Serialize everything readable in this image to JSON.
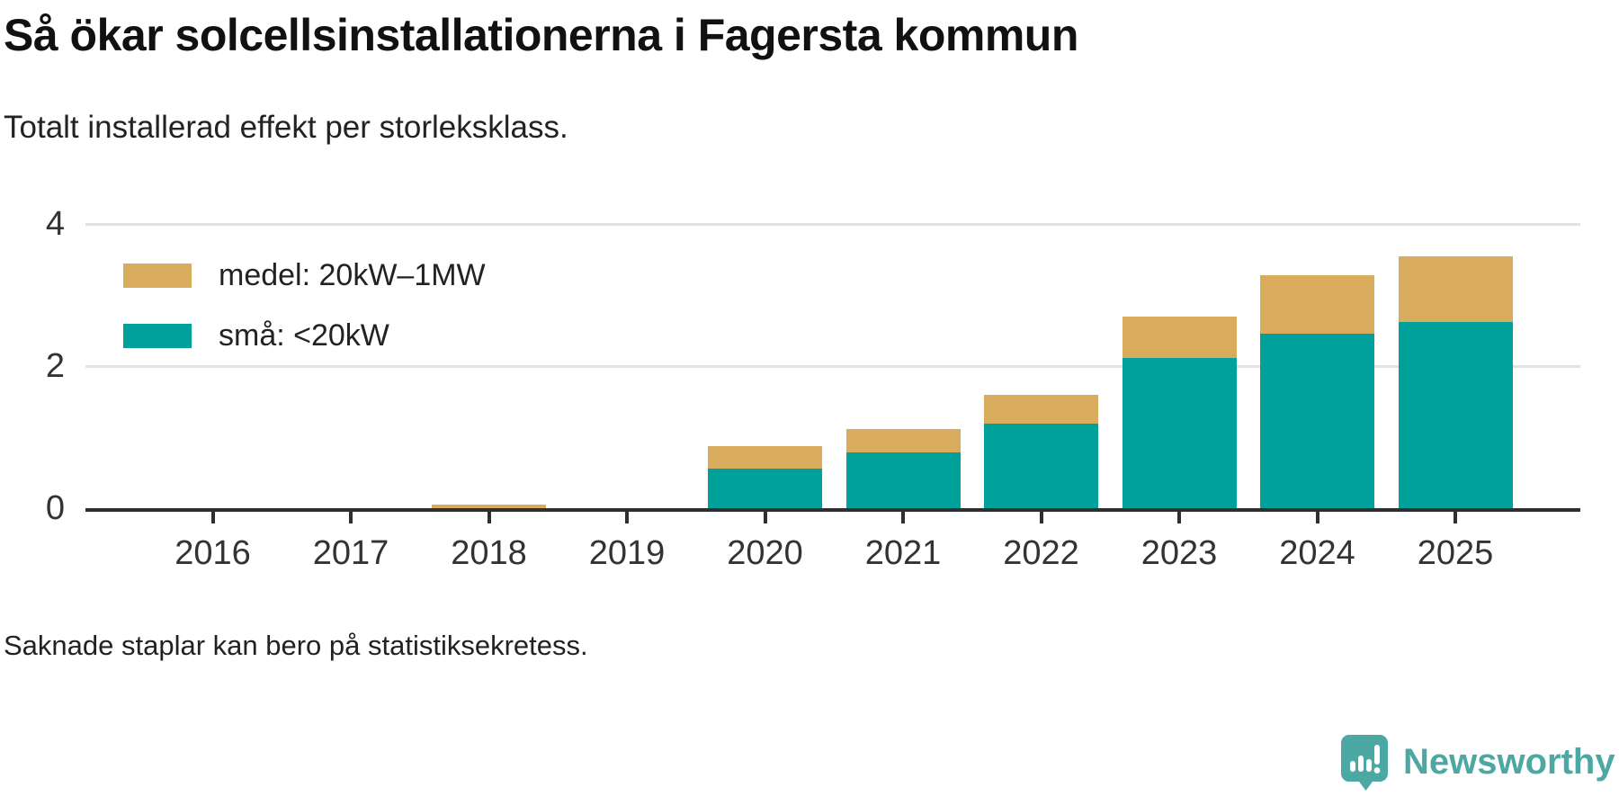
{
  "header": {
    "title": "Så ökar solcellsinstallationerna i Fagersta kommun",
    "subtitle": "Totalt installerad effekt per storleksklass."
  },
  "footer": {
    "note": "Saknade staplar kan bero på statistiksekretess."
  },
  "brand": {
    "name": "Newsworthy",
    "color": "#4ba8a2",
    "icon": "newsworthy-speech-bubble-chart-logo"
  },
  "colors": {
    "medel": "#d9ab5c",
    "sma": "#00a19b",
    "axis": "#2f2f2f",
    "gridline": "#e2e2e2"
  },
  "chart_data": {
    "type": "bar",
    "stacked": true,
    "title": "Så ökar solcellsinstallationerna i Fagersta kommun",
    "subtitle": "Totalt installerad effekt per storleksklass.",
    "categories": [
      "2016",
      "2017",
      "2018",
      "2019",
      "2020",
      "2021",
      "2022",
      "2023",
      "2024",
      "2025"
    ],
    "series": [
      {
        "name": "medel: 20kW–1MW",
        "color": "#d9ab5c",
        "values": [
          0,
          0,
          0.05,
          0,
          0.31,
          0.32,
          0.41,
          0.58,
          0.82,
          0.92
        ]
      },
      {
        "name": "små: <20kW",
        "color": "#00a19b",
        "values": [
          0,
          0,
          0,
          0,
          0.56,
          0.79,
          1.19,
          2.11,
          2.46,
          2.62
        ]
      }
    ],
    "xlabel": "",
    "ylabel": "",
    "ylim": [
      0,
      4
    ],
    "yticks": [
      0,
      2,
      4
    ],
    "grid": true,
    "legend_position": "top-left",
    "note": "Saknade staplar kan bero på statistiksekretess."
  }
}
